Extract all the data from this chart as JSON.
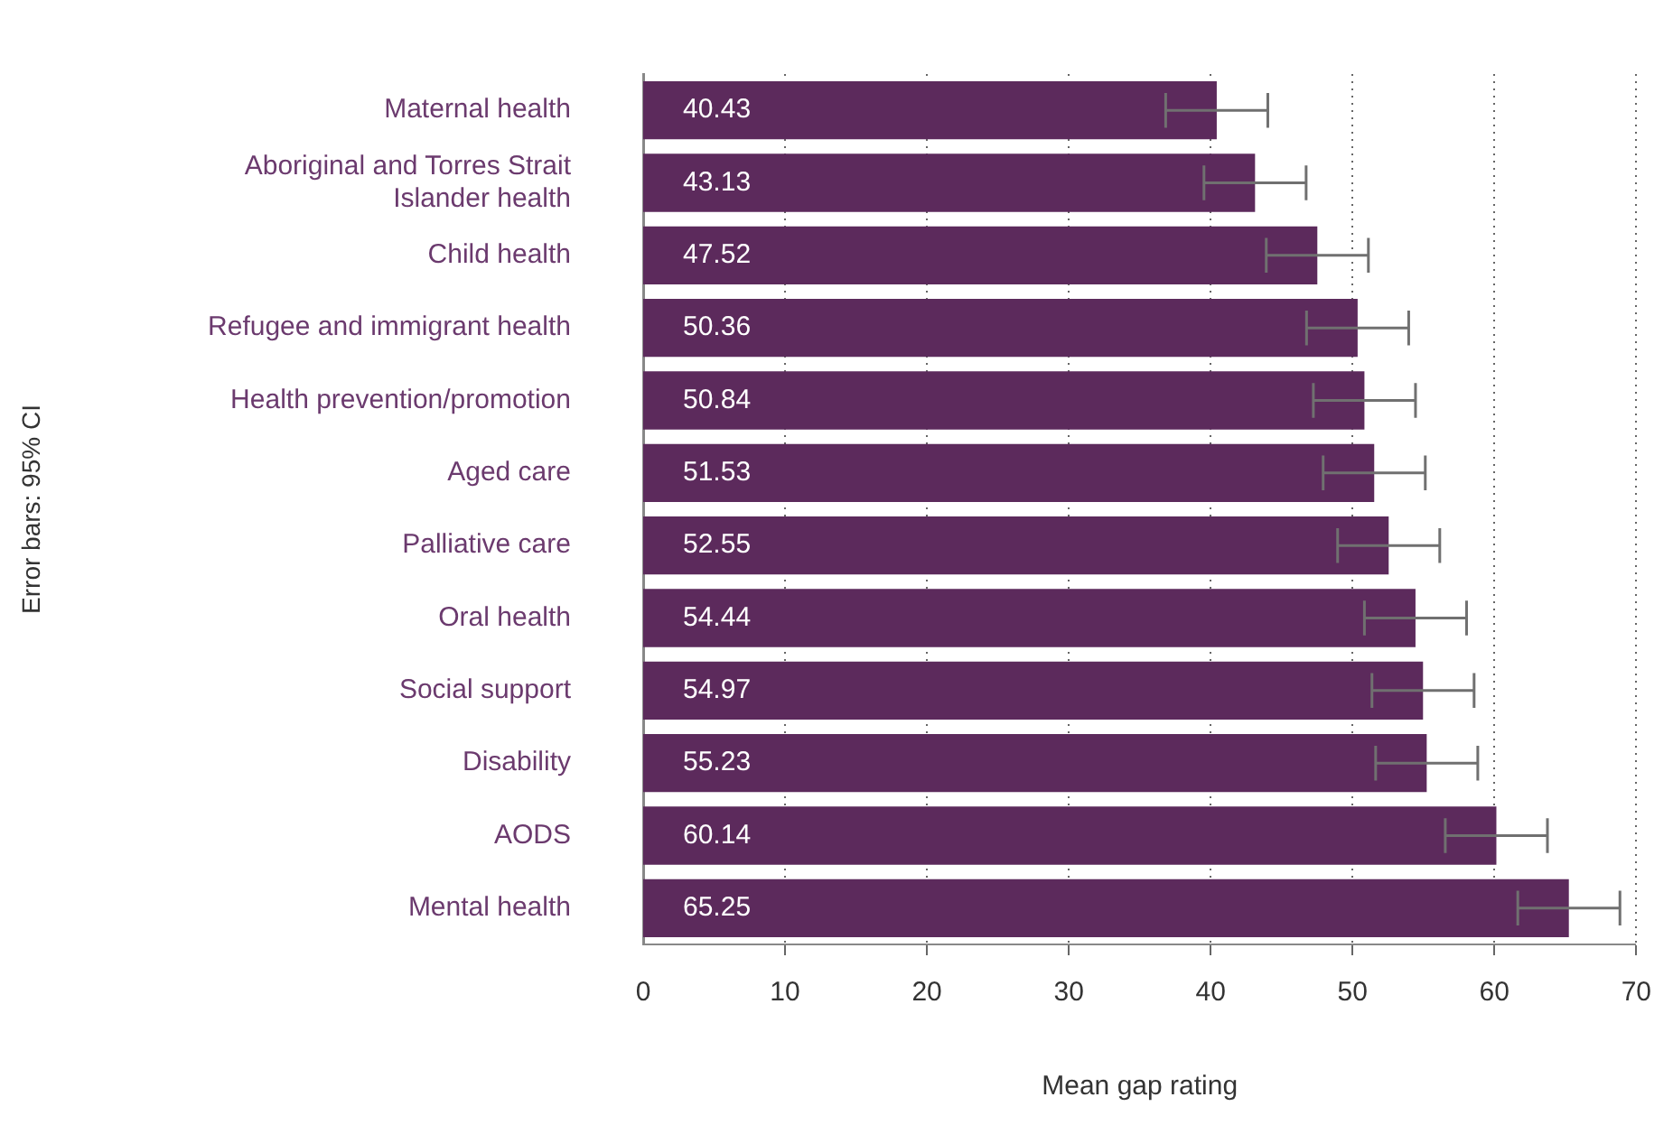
{
  "chart_data": {
    "type": "bar",
    "orientation": "horizontal",
    "xlabel": "Mean gap rating",
    "annotations": [
      "Error bars: 95% CI"
    ],
    "categories": [
      "Maternal health",
      "Aboriginal and Torres Strait Islander health",
      "Child health",
      "Refugee and immigrant health",
      "Health prevention/promotion",
      "Aged care",
      "Palliative care",
      "Oral health",
      "Social support",
      "Disability",
      "AODS",
      "Mental health"
    ],
    "values": [
      40.43,
      43.13,
      47.52,
      50.36,
      50.84,
      51.53,
      52.55,
      54.44,
      54.97,
      55.23,
      60.14,
      65.25
    ],
    "errors": [
      3.6,
      3.6,
      3.6,
      3.6,
      3.6,
      3.6,
      3.6,
      3.6,
      3.6,
      3.6,
      3.6,
      3.6
    ],
    "color": "#5c2a5c",
    "data_labels": true,
    "grid": "x",
    "xlim": [
      0,
      70
    ],
    "xticks": [
      0,
      10,
      20,
      30,
      40,
      50,
      60,
      70
    ]
  }
}
